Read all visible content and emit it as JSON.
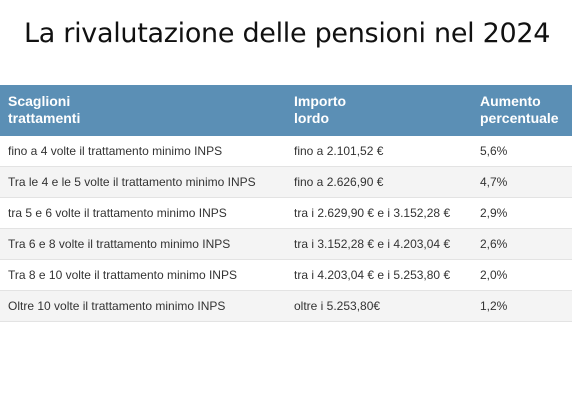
{
  "title": "La rivalutazione delle pensioni nel 2024",
  "table": {
    "headers": [
      {
        "line1": "Scaglioni",
        "line2": "trattamenti"
      },
      {
        "line1": "Importo",
        "line2": "lordo"
      },
      {
        "line1": "Aumento",
        "line2": "percentuale"
      }
    ],
    "rows": [
      [
        "fino a 4 volte il trattamento minimo INPS",
        "fino a 2.101,52 €",
        "5,6%"
      ],
      [
        "Tra le 4 e le 5 volte il trattamento minimo INPS",
        "fino a 2.626,90 €",
        "4,7%"
      ],
      [
        "tra 5 e 6 volte il trattamento minimo INPS",
        "tra i 2.629,90 € e i 3.152,28 €",
        "2,9%"
      ],
      [
        "Tra 6 e 8 volte il trattamento minimo INPS",
        "tra i 3.152,28 € e i 4.203,04 €",
        "2,6%"
      ],
      [
        "Tra 8 e 10 volte il trattamento minimo INPS",
        "tra i 4.203,04 € e i 5.253,80 €",
        "2,0%"
      ],
      [
        "Oltre 10 volte il trattamento minimo INPS",
        "oltre i 5.253,80€",
        "1,2%"
      ]
    ]
  },
  "colors": {
    "header_bg": "#5b8fb5",
    "header_text": "#ffffff",
    "row_alt_bg": "#f4f4f4",
    "body_text": "#333333"
  }
}
